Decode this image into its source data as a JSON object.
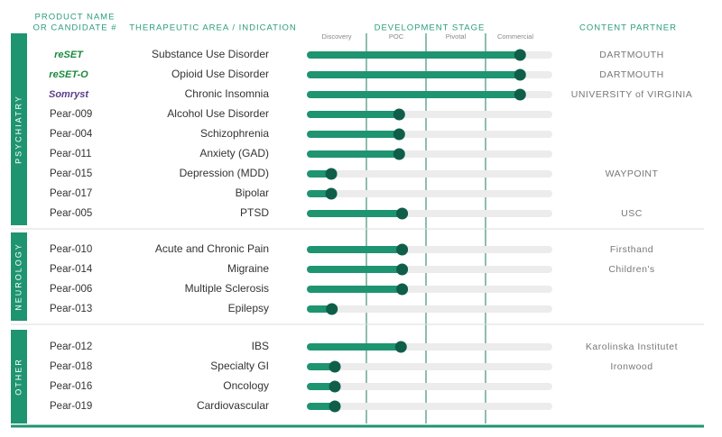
{
  "chart_data": {
    "type": "bar",
    "orientation": "horizontal",
    "headers": {
      "product": [
        "PRODUCT NAME",
        "OR CANDIDATE #"
      ],
      "indication": "THERAPEUTIC AREA / INDICATION",
      "stage": "DEVELOPMENT STAGE",
      "partner": "CONTENT PARTNER"
    },
    "xlim": [
      0,
      4
    ],
    "xticks": [
      {
        "value": 0.5,
        "label": "Discovery"
      },
      {
        "value": 1.5,
        "label": "POC"
      },
      {
        "value": 2.5,
        "label": "Pivotal"
      },
      {
        "value": 3.5,
        "label": "Commercial"
      }
    ],
    "color": "#1f9470",
    "dot_color": "#0f5e49",
    "track_color": "#ececec",
    "groups": [
      {
        "name": "PSYCHIATRY",
        "products": [
          "reSET",
          "reSET-O",
          "Somryst",
          "Pear-009",
          "Pear-004",
          "Pear-011",
          "Pear-015",
          "Pear-017",
          "Pear-005"
        ],
        "indications": [
          "Substance Use Disorder",
          "Opioid Use Disorder",
          "Chronic Insomnia",
          "Alcohol Use Disorder",
          "Schizophrenia",
          "Anxiety (GAD)",
          "Depression (MDD)",
          "Bipolar",
          "PTSD"
        ],
        "partners": [
          "DARTMOUTH",
          "DARTMOUTH",
          "UNIVERSITY of VIRGINIA",
          null,
          null,
          null,
          "WAYPOINT",
          null,
          "USC"
        ],
        "values": [
          3.58,
          3.58,
          3.58,
          1.55,
          1.55,
          1.55,
          0.41,
          0.41,
          1.6
        ]
      },
      {
        "name": "NEUROLOGY",
        "products": [
          "Pear-010",
          "Pear-014",
          "Pear-006",
          "Pear-013"
        ],
        "indications": [
          "Acute and Chronic Pain",
          "Migraine",
          "Multiple Sclerosis",
          "Epilepsy"
        ],
        "partners": [
          "Firsthand",
          "Children's",
          null,
          null
        ],
        "values": [
          1.6,
          1.6,
          1.6,
          0.42
        ]
      },
      {
        "name": "OTHER",
        "products": [
          "Pear-012",
          "Pear-018",
          "Pear-016",
          "Pear-019"
        ],
        "indications": [
          "IBS",
          "Specialty GI",
          "Oncology",
          "Cardiovascular"
        ],
        "partners": [
          "Karolinska Institutet",
          "Ironwood",
          null,
          null
        ],
        "values": [
          1.58,
          0.47,
          0.47,
          0.47
        ]
      }
    ]
  }
}
